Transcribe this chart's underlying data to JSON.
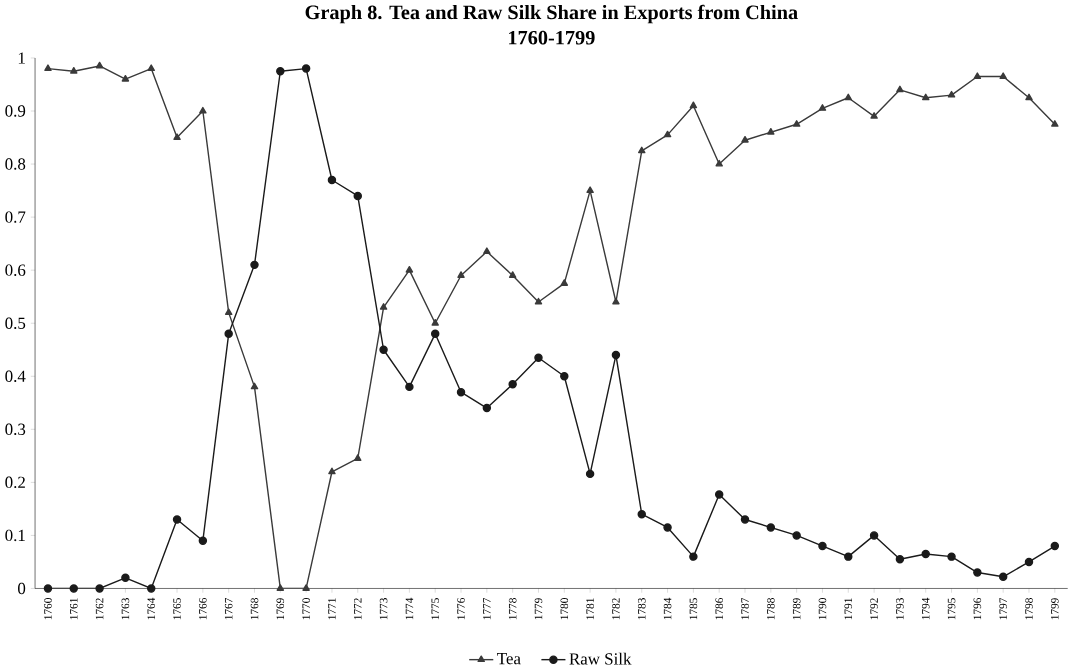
{
  "chart_data": {
    "type": "line",
    "title": "Graph 8. Tea and Raw Silk Share in Exports from China",
    "subtitle": "1760-1799",
    "categories": [
      "1760",
      "1761",
      "1762",
      "1763",
      "1764",
      "1765",
      "1766",
      "1767",
      "1768",
      "1769",
      "1770",
      "1771",
      "1772",
      "1773",
      "1774",
      "1775",
      "1776",
      "1777",
      "1778",
      "1779",
      "1780",
      "1781",
      "1782",
      "1783",
      "1784",
      "1785",
      "1786",
      "1787",
      "1788",
      "1789",
      "1790",
      "1791",
      "1792",
      "1793",
      "1794",
      "1795",
      "1796",
      "1797",
      "1798",
      "1799"
    ],
    "series": [
      {
        "name": "Tea",
        "color": "#3a3a3a",
        "marker": "triangle",
        "values": [
          0.98,
          0.975,
          0.985,
          0.96,
          0.98,
          0.85,
          0.9,
          0.52,
          0.38,
          0,
          0,
          0.22,
          0.245,
          0.53,
          0.6,
          0.5,
          0.59,
          0.635,
          0.59,
          0.54,
          0.575,
          0.75,
          0.54,
          0.825,
          0.855,
          0.91,
          0.8,
          0.845,
          0.86,
          0.875,
          0.905,
          0.925,
          0.89,
          0.94,
          0.925,
          0.93,
          0.965,
          0.965,
          0.925,
          0.875
        ]
      },
      {
        "name": "Raw Silk",
        "color": "#1a1a1a",
        "marker": "circle",
        "values": [
          0,
          0,
          0,
          0.02,
          0,
          0.13,
          0.09,
          0.48,
          0.61,
          0.975,
          0.98,
          0.77,
          0.74,
          0.45,
          0.38,
          0.48,
          0.37,
          0.34,
          0.385,
          0.435,
          0.4,
          0.216,
          0.44,
          0.14,
          0.115,
          0.06,
          0.177,
          0.13,
          0.115,
          0.1,
          0.08,
          0.06,
          0.1,
          0.055,
          0.065,
          0.06,
          0.03,
          0.022,
          0.05,
          0.08
        ]
      }
    ],
    "ylim": [
      0,
      1
    ],
    "yticks": [
      0,
      0.1,
      0.2,
      0.3,
      0.4,
      0.5,
      0.6,
      0.7,
      0.8,
      0.9,
      1
    ],
    "legend": "bottom",
    "line_style": "solid"
  }
}
